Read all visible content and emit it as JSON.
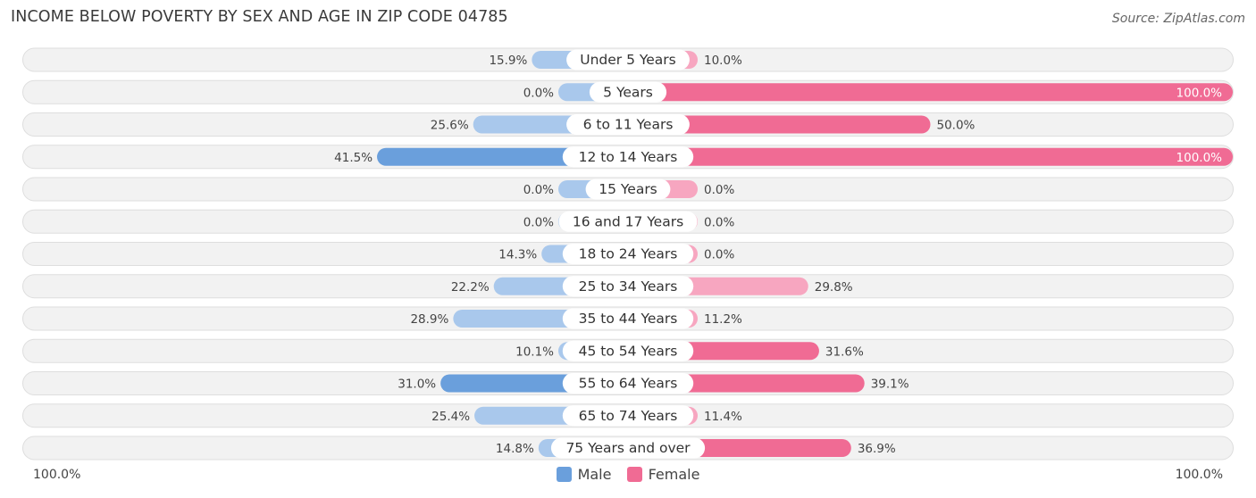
{
  "title": "INCOME BELOW POVERTY BY SEX AND AGE IN ZIP CODE 04785",
  "source": "Source: ZipAtlas.com",
  "axis": {
    "left_label": "100.0%",
    "right_label": "100.0%"
  },
  "legend": [
    {
      "name": "Male",
      "color": "#6a9fdc"
    },
    {
      "name": "Female",
      "color": "#f06b94"
    }
  ],
  "colors": {
    "male_light": "#a9c8ec",
    "male_dark": "#6a9fdc",
    "female_light": "#f7a6c0",
    "female_dark": "#f06b94",
    "row_bg": "#f2f2f2",
    "row_border": "#dedede"
  },
  "chart_data": {
    "type": "bar",
    "orientation": "horizontal-diverging",
    "title": "INCOME BELOW POVERTY BY SEX AND AGE IN ZIP CODE 04785",
    "xlim": [
      -100,
      100
    ],
    "categories": [
      "Under 5 Years",
      "5 Years",
      "6 to 11 Years",
      "12 to 14 Years",
      "15 Years",
      "16 and 17 Years",
      "18 to 24 Years",
      "25 to 34 Years",
      "35 to 44 Years",
      "45 to 54 Years",
      "55 to 64 Years",
      "65 to 74 Years",
      "75 Years and over"
    ],
    "series": [
      {
        "name": "Male",
        "values": [
          15.9,
          0.0,
          25.6,
          41.5,
          0.0,
          0.0,
          14.3,
          22.2,
          28.9,
          10.1,
          31.0,
          25.4,
          14.8
        ],
        "labels": [
          "15.9%",
          "0.0%",
          "25.6%",
          "41.5%",
          "0.0%",
          "0.0%",
          "14.3%",
          "22.2%",
          "28.9%",
          "10.1%",
          "31.0%",
          "25.4%",
          "14.8%"
        ]
      },
      {
        "name": "Female",
        "values": [
          10.0,
          100.0,
          50.0,
          100.0,
          0.0,
          0.0,
          0.0,
          29.8,
          11.2,
          31.6,
          39.1,
          11.4,
          36.9
        ],
        "labels": [
          "10.0%",
          "100.0%",
          "50.0%",
          "100.0%",
          "0.0%",
          "0.0%",
          "0.0%",
          "29.8%",
          "11.2%",
          "31.6%",
          "39.1%",
          "11.4%",
          "36.9%"
        ]
      }
    ]
  }
}
